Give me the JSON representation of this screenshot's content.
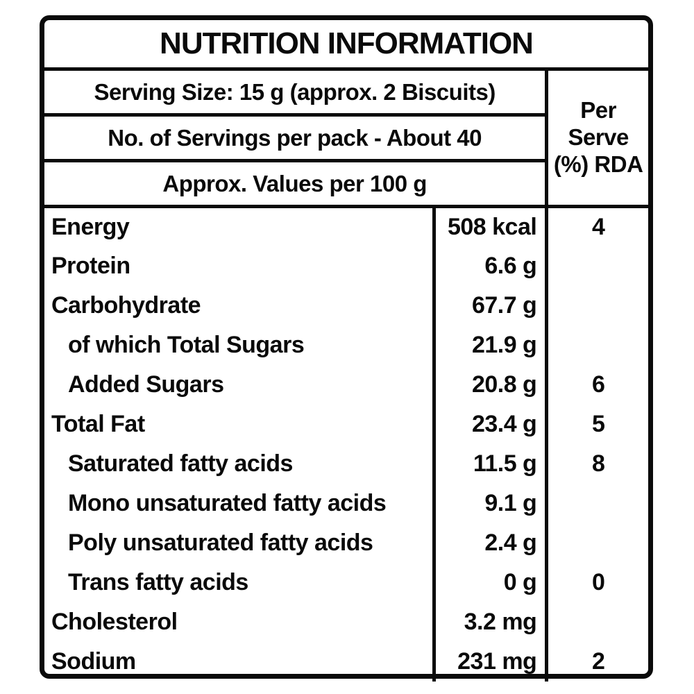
{
  "label": {
    "title": "NUTRITION INFORMATION",
    "serving_size": "Serving Size: 15 g (approx. 2 Biscuits)",
    "servings_per_pack": "No. of Servings per pack - About 40",
    "values_basis": "Approx. Values per 100 g",
    "per_serve_header": "Per\nServe\n(%) RDA",
    "rows": [
      {
        "name": "Energy",
        "value": "508 kcal",
        "rda": "4",
        "indent": false
      },
      {
        "name": "Protein",
        "value": "6.6 g",
        "rda": "",
        "indent": false
      },
      {
        "name": "Carbohydrate",
        "value": "67.7 g",
        "rda": "",
        "indent": false
      },
      {
        "name": "of which Total Sugars",
        "value": "21.9 g",
        "rda": "",
        "indent": true
      },
      {
        "name": "Added Sugars",
        "value": "20.8 g",
        "rda": "6",
        "indent": true
      },
      {
        "name": "Total Fat",
        "value": "23.4 g",
        "rda": "5",
        "indent": false
      },
      {
        "name": "Saturated fatty acids",
        "value": "11.5 g",
        "rda": "8",
        "indent": true
      },
      {
        "name": "Mono unsaturated fatty acids",
        "value": "9.1 g",
        "rda": "",
        "indent": true
      },
      {
        "name": "Poly unsaturated fatty acids",
        "value": "2.4 g",
        "rda": "",
        "indent": true
      },
      {
        "name": "Trans fatty acids",
        "value": "0 g",
        "rda": "0",
        "indent": true
      },
      {
        "name": "Cholesterol",
        "value": "3.2 mg",
        "rda": "",
        "indent": false
      },
      {
        "name": "Sodium",
        "value": "231 mg",
        "rda": "2",
        "indent": false
      }
    ],
    "colors": {
      "border": "#0a0a0a",
      "text": "#0a0a0a",
      "background": "#ffffff"
    }
  }
}
